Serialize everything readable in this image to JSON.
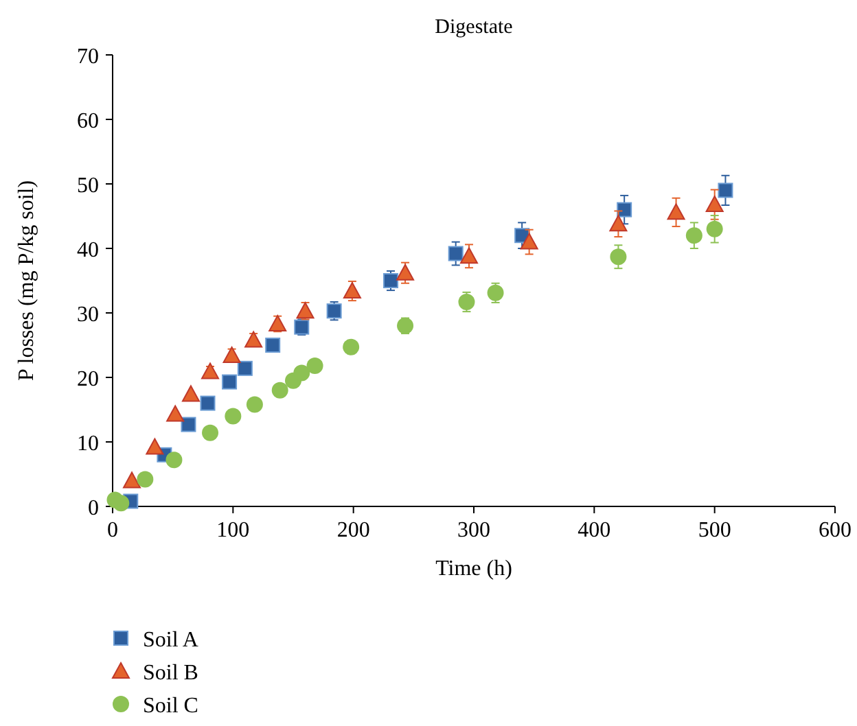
{
  "chart_data": {
    "type": "scatter",
    "title": "Digestate",
    "xlabel": "Time (h)",
    "ylabel": "P losses (mg P/kg soil)",
    "xlim": [
      0,
      600
    ],
    "xticks": [
      0,
      100,
      200,
      300,
      400,
      500,
      600
    ],
    "ylim": [
      0,
      70
    ],
    "yticks": [
      0,
      10,
      20,
      30,
      40,
      50,
      60,
      70
    ],
    "grid": false,
    "legend": "bottom",
    "series": [
      {
        "name": "Soil A",
        "color": "#2e5f9e",
        "marker": "square",
        "x": [
          15,
          43,
          63,
          79,
          97,
          110,
          133,
          157,
          184,
          231,
          285,
          340,
          425,
          509
        ],
        "values": [
          0.8,
          8,
          12.7,
          16,
          19.3,
          21.4,
          25,
          27.8,
          30.3,
          35,
          39.2,
          42,
          46,
          49
        ],
        "errors": [
          null,
          null,
          null,
          null,
          0.8,
          0.8,
          1,
          1.2,
          1.4,
          1.5,
          1.8,
          2,
          2.2,
          2.3
        ]
      },
      {
        "name": "Soil B",
        "color": "#e4632c",
        "marker": "triangle",
        "x": [
          16,
          35,
          52,
          65,
          81,
          99,
          117,
          137,
          160,
          199,
          243,
          296,
          346,
          420,
          468,
          500
        ],
        "values": [
          4,
          9.2,
          14.3,
          17.4,
          20.9,
          23.4,
          25.8,
          28.3,
          30.3,
          33.4,
          36.2,
          38.8,
          41,
          43.8,
          45.6,
          46.8
        ],
        "errors": [
          null,
          null,
          null,
          null,
          0.8,
          1,
          1,
          1.2,
          1.3,
          1.5,
          1.6,
          1.8,
          1.9,
          2,
          2.2,
          2.3
        ]
      },
      {
        "name": "Soil C",
        "color": "#8dc153",
        "marker": "circle",
        "x": [
          2,
          7,
          27,
          51,
          81,
          100,
          118,
          139,
          150,
          157,
          168,
          198,
          243,
          294,
          318,
          420,
          483,
          500
        ],
        "values": [
          1,
          0.5,
          4.2,
          7.2,
          11.4,
          14,
          15.8,
          18,
          19.5,
          20.7,
          21.8,
          24.7,
          28,
          31.7,
          33.1,
          38.7,
          42,
          43
        ],
        "errors": [
          null,
          null,
          null,
          null,
          null,
          null,
          null,
          null,
          null,
          null,
          null,
          1,
          1.2,
          1.5,
          1.5,
          1.8,
          2,
          2.1
        ]
      }
    ]
  }
}
